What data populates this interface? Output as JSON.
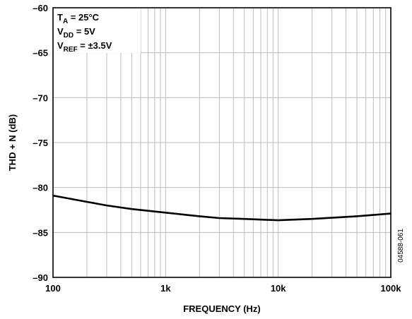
{
  "chart_data": {
    "type": "line",
    "xscale": "log",
    "xlim": [
      100,
      100000
    ],
    "ylim": [
      -90,
      -60
    ],
    "xlabel": "FREQUENCY (Hz)",
    "ylabel": "THD + N (dB)",
    "grid": true,
    "xtick_labels": [
      {
        "value": 100,
        "label": "100"
      },
      {
        "value": 1000,
        "label": "1k"
      },
      {
        "value": 10000,
        "label": "10k"
      },
      {
        "value": 100000,
        "label": "100k"
      }
    ],
    "yticks": [
      -60,
      -65,
      -70,
      -75,
      -80,
      -85,
      -90
    ],
    "ytick_labels": [
      "–60",
      "–65",
      "–70",
      "–75",
      "–80",
      "–85",
      "–90"
    ],
    "series": [
      {
        "x": [
          100,
          200,
          300,
          500,
          1000,
          2000,
          3000,
          5000,
          10000,
          20000,
          50000,
          100000
        ],
        "y": [
          -80.9,
          -81.6,
          -82.0,
          -82.4,
          -82.8,
          -83.2,
          -83.4,
          -83.5,
          -83.65,
          -83.5,
          -83.2,
          -82.9
        ]
      }
    ],
    "annotations": [
      {
        "main": "T",
        "sub": "A",
        "rest": " = 25°C"
      },
      {
        "main": "V",
        "sub": "DD",
        "rest": " = 5V"
      },
      {
        "main": "V",
        "sub": "REF",
        "rest": " = ±3.5V"
      }
    ],
    "figure_id": "04588-061"
  }
}
